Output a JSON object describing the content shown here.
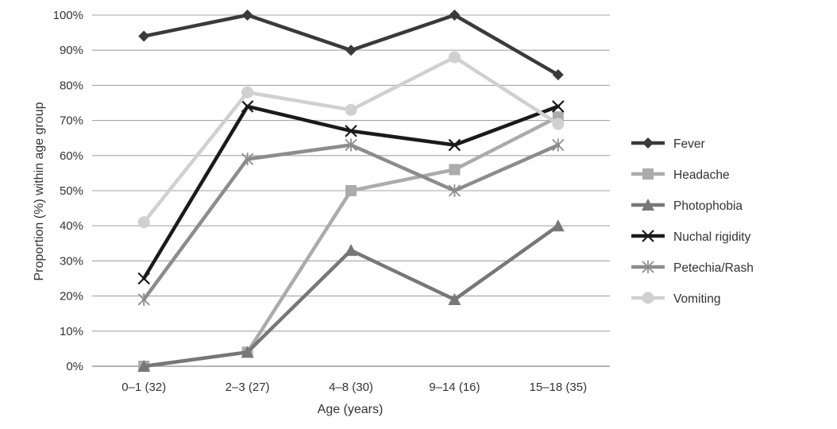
{
  "chart_data": {
    "type": "line",
    "title": "",
    "xlabel": "Age (years)",
    "ylabel": "Proportion (%) within age group",
    "categories": [
      "0–1 (32)",
      "2–3 (27)",
      "4–8 (30)",
      "9–14 (16)",
      "15–18 (35)"
    ],
    "yticks": [
      "0%",
      "10%",
      "20%",
      "30%",
      "40%",
      "50%",
      "60%",
      "70%",
      "80%",
      "90%",
      "100%"
    ],
    "ylim": [
      0,
      100
    ],
    "grid": "horizontal",
    "legend_position": "right",
    "series": [
      {
        "name": "Fever",
        "values": [
          94,
          100,
          90,
          100,
          83
        ],
        "color": "#3a3a3a",
        "marker": "diamond"
      },
      {
        "name": "Headache",
        "values": [
          0,
          4,
          50,
          56,
          71
        ],
        "color": "#ababab",
        "marker": "square"
      },
      {
        "name": "Photophobia",
        "values": [
          0,
          4,
          33,
          19,
          40
        ],
        "color": "#777777",
        "marker": "triangle"
      },
      {
        "name": "Nuchal rigidity",
        "values": [
          25,
          74,
          67,
          63,
          74
        ],
        "color": "#1a1a1a",
        "marker": "x"
      },
      {
        "name": "Petechia/Rash",
        "values": [
          19,
          59,
          63,
          50,
          63
        ],
        "color": "#8c8c8c",
        "marker": "asterisk"
      },
      {
        "name": "Vomiting",
        "values": [
          41,
          78,
          73,
          88,
          69
        ],
        "color": "#d0d0d0",
        "marker": "circle"
      }
    ]
  }
}
